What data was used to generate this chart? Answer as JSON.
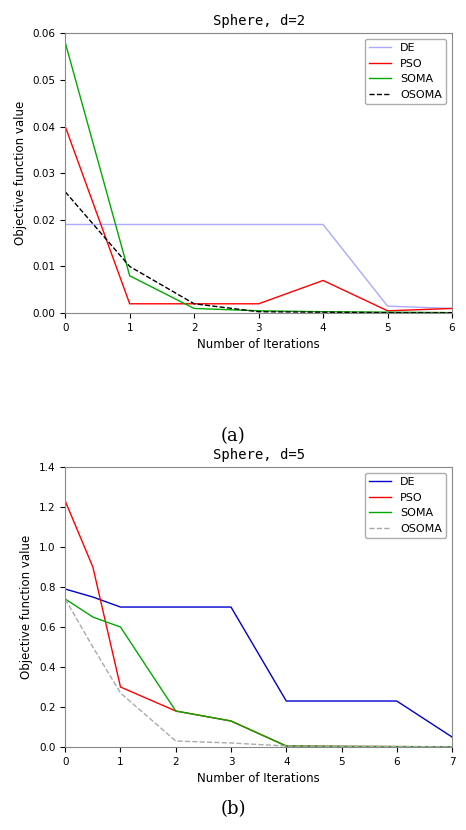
{
  "plot_a": {
    "title": "Sphere, d=2",
    "xlabel": "Number of Iterations",
    "ylabel": "Objective function value",
    "xlim": [
      0,
      6
    ],
    "ylim": [
      0,
      0.06
    ],
    "yticks": [
      0.0,
      0.01,
      0.02,
      0.03,
      0.04,
      0.05,
      0.06
    ],
    "xticks": [
      0,
      1,
      2,
      3,
      4,
      5,
      6
    ],
    "DE": {
      "x": [
        0,
        1,
        2,
        3,
        4,
        5,
        6
      ],
      "y": [
        0.019,
        0.019,
        0.019,
        0.019,
        0.019,
        0.0015,
        0.001
      ],
      "color": "#aaaaff",
      "linestyle": "-",
      "label": "DE"
    },
    "PSO": {
      "x": [
        0,
        1,
        2,
        3,
        4,
        5,
        6
      ],
      "y": [
        0.04,
        0.002,
        0.002,
        0.002,
        0.007,
        0.0005,
        0.001
      ],
      "color": "#ff0000",
      "linestyle": "-",
      "label": "PSO"
    },
    "SOMA": {
      "x": [
        0,
        1,
        2,
        3,
        4,
        5,
        6
      ],
      "y": [
        0.058,
        0.008,
        0.001,
        0.0005,
        0.0003,
        0.0002,
        0.0001
      ],
      "color": "#00aa00",
      "linestyle": "-",
      "label": "SOMA"
    },
    "OSOMA": {
      "x": [
        0,
        1,
        2,
        3,
        4,
        5,
        6
      ],
      "y": [
        0.026,
        0.01,
        0.002,
        0.0003,
        0.0002,
        0.0001,
        0.0001
      ],
      "color": "#000000",
      "linestyle": "--",
      "label": "OSOMA"
    }
  },
  "plot_b": {
    "title": "Sphere, d=5",
    "xlabel": "Number of Iterations",
    "ylabel": "Objective function value",
    "xlim": [
      0,
      7
    ],
    "ylim": [
      0,
      1.4
    ],
    "yticks": [
      0.0,
      0.2,
      0.4,
      0.6,
      0.8,
      1.0,
      1.2,
      1.4
    ],
    "xticks": [
      0,
      1,
      2,
      3,
      4,
      5,
      6,
      7
    ],
    "DE": {
      "x": [
        0,
        0.5,
        1,
        2,
        3,
        4,
        6,
        7
      ],
      "y": [
        0.79,
        0.75,
        0.7,
        0.7,
        0.7,
        0.23,
        0.23,
        0.05
      ],
      "color": "#0000cc",
      "linestyle": "-",
      "label": "DE"
    },
    "PSO": {
      "x": [
        0,
        0.5,
        1,
        2,
        3,
        4,
        5,
        6,
        7
      ],
      "y": [
        1.23,
        0.9,
        0.3,
        0.18,
        0.13,
        0.005,
        0.003,
        0.002,
        0.001
      ],
      "color": "#ff0000",
      "linestyle": "-",
      "label": "PSO"
    },
    "SOMA": {
      "x": [
        0,
        0.5,
        1,
        2,
        3,
        4,
        5,
        6,
        7
      ],
      "y": [
        0.74,
        0.65,
        0.6,
        0.18,
        0.13,
        0.005,
        0.003,
        0.002,
        0.001
      ],
      "color": "#00aa00",
      "linestyle": "-",
      "label": "SOMA"
    },
    "OSOMA": {
      "x": [
        0,
        0.5,
        1,
        2,
        3,
        4,
        5,
        6,
        7
      ],
      "y": [
        0.74,
        0.5,
        0.27,
        0.03,
        0.02,
        0.005,
        0.003,
        0.002,
        0.001
      ],
      "color": "#aaaaaa",
      "linestyle": "--",
      "label": "OSOMA"
    }
  },
  "label_a": "(a)",
  "label_b": "(b)",
  "background_color": "#ffffff",
  "font_family": "monospace"
}
